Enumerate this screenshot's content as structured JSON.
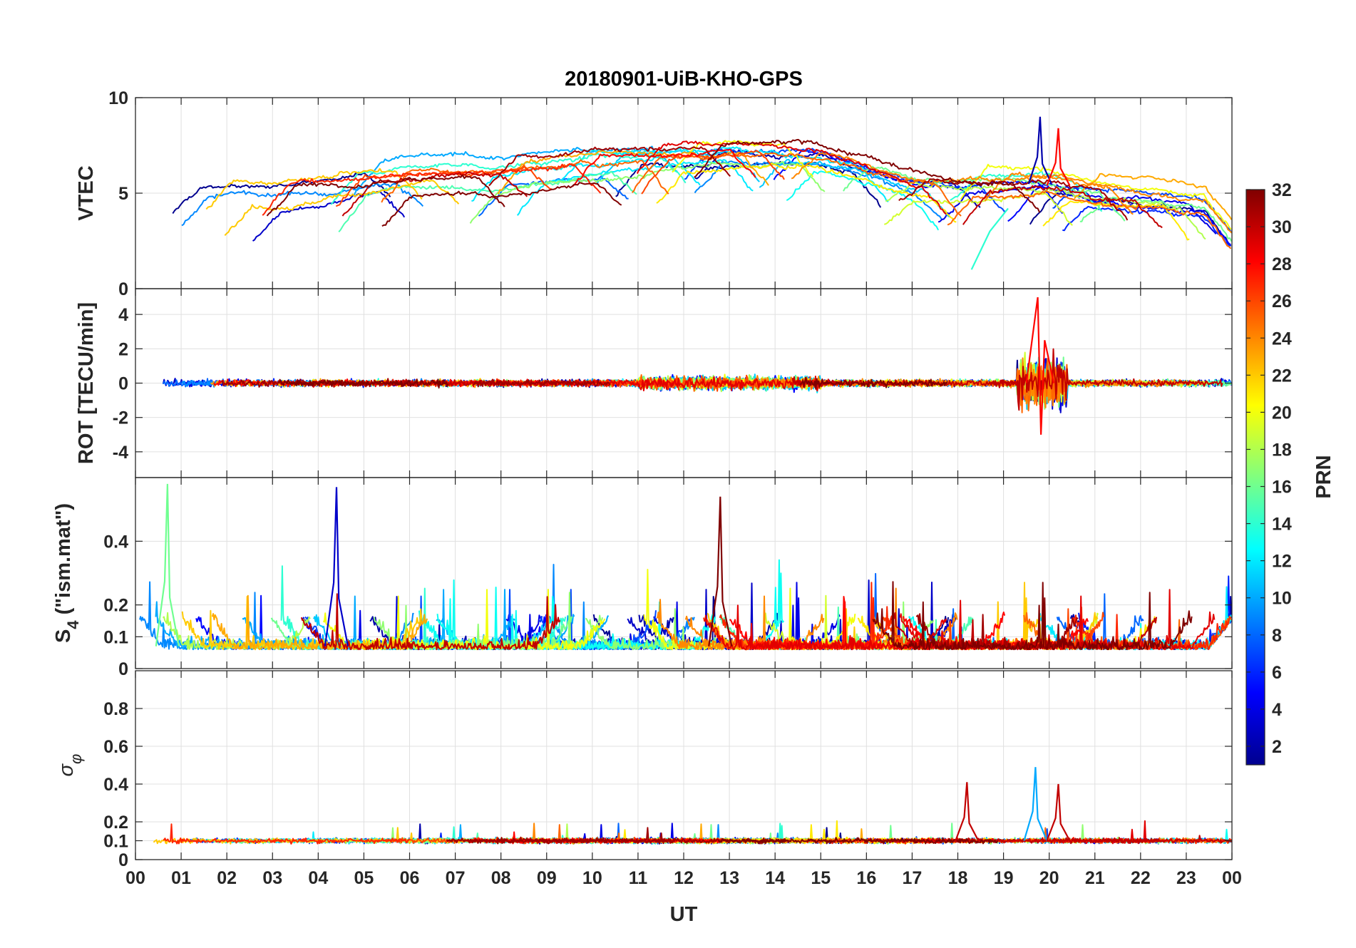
{
  "chart_data": {
    "type": "line",
    "title": "20180901-UiB-KHO-GPS",
    "xlabel": "UT",
    "x_range_hours": [
      0,
      24
    ],
    "x_tick_labels": [
      "00",
      "01",
      "02",
      "03",
      "04",
      "05",
      "06",
      "07",
      "08",
      "09",
      "10",
      "11",
      "12",
      "13",
      "14",
      "15",
      "16",
      "17",
      "18",
      "19",
      "20",
      "21",
      "22",
      "23",
      "00"
    ],
    "grid": true,
    "color_scale": {
      "label": "PRN",
      "range": [
        1,
        32
      ],
      "tick_labels": [
        "2",
        "4",
        "6",
        "8",
        "10",
        "12",
        "14",
        "16",
        "18",
        "20",
        "22",
        "24",
        "26",
        "28",
        "30",
        "32"
      ],
      "colormap": "jet",
      "placement": "right"
    },
    "panels": [
      {
        "name": "vtec",
        "ylabel": "VTEC",
        "ylim": [
          0,
          10
        ],
        "y_ticks": [
          0,
          5,
          10
        ],
        "y_tick_labels": [
          "0",
          "5",
          "10"
        ],
        "features": [
          {
            "prn": 2,
            "t": 19.8,
            "peak": 9.0
          },
          {
            "prn": 28,
            "t": 20.2,
            "peak": 8.4
          },
          {
            "prn": 14,
            "t": 18.3,
            "min": 1.0
          }
        ]
      },
      {
        "name": "rot",
        "ylabel": "ROT [TECU/min]",
        "ylim": [
          -5.5,
          5.5
        ],
        "y_ticks": [
          -4,
          -2,
          0,
          2,
          4
        ],
        "y_tick_labels": [
          "-4",
          "-2",
          "0",
          "2",
          "4"
        ],
        "features": [
          {
            "t": 19.8,
            "max": 5.0,
            "min": -3.0
          }
        ]
      },
      {
        "name": "s4",
        "ylabel_main": "S",
        "ylabel_sub": "4",
        "ylabel_tail": " (\"ism.mat\")",
        "ylim": [
          0,
          0.6
        ],
        "y_ticks": [
          0,
          0.1,
          0.2,
          0.4
        ],
        "y_tick_labels": [
          "0",
          "0.1",
          "0.2",
          "0.4"
        ],
        "features": [
          {
            "prn": 3,
            "t": 4.4,
            "peak": 0.57
          },
          {
            "prn": 32,
            "t": 12.8,
            "peak": 0.54
          },
          {
            "prn": 16,
            "t": 0.7,
            "peak": 0.58
          }
        ]
      },
      {
        "name": "sigma_phi",
        "ylabel_main": "σ",
        "ylabel_sub": "φ",
        "ylim": [
          0,
          1
        ],
        "y_ticks": [
          0,
          0.1,
          0.2,
          0.4,
          0.6,
          0.8
        ],
        "y_tick_labels": [
          "0",
          "0.1",
          "0.2",
          "0.4",
          "0.6",
          "0.8"
        ],
        "features": [
          {
            "prn": 10,
            "t": 19.7,
            "peak": 0.49
          },
          {
            "prn": 30,
            "t": 18.2,
            "peak": 0.41
          },
          {
            "prn": 30,
            "t": 20.2,
            "peak": 0.4
          }
        ]
      }
    ]
  }
}
